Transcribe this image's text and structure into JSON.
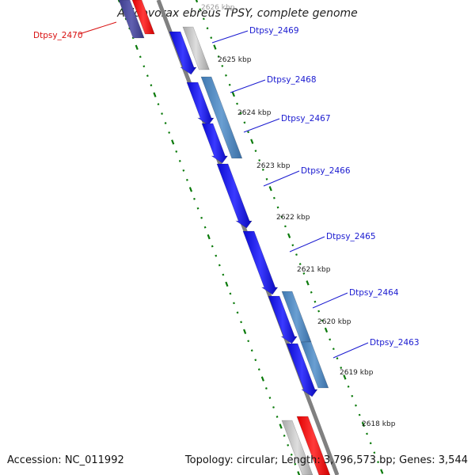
{
  "title": "Acidovorax ebreus TPSY, complete genome",
  "footer": {
    "accession": "Accession: NC_011992",
    "stats": "Topology: circular; Length: 3,796,573 bp; Genes: 3,544"
  },
  "colors": {
    "backbone": "#808080",
    "tick": "#0a7a0a",
    "gene_forward": "#1414f0",
    "gene_reverse": "#4a86c0",
    "gene_gray": "#bdbdbd",
    "gene_red": "#ff1010",
    "gene_navy": "#4a4a9e",
    "label_blue": "#1a1ad0",
    "label_red": "#d81010"
  },
  "ruler": [
    "2626 kbp",
    "2625 kbp",
    "2624 kbp",
    "2623 kbp",
    "2622 kbp",
    "2621 kbp",
    "2620 kbp",
    "2619 kbp",
    "2618 kbp"
  ],
  "gene_labels": [
    {
      "text": "Dtpsy_2470",
      "color": "red"
    },
    {
      "text": "Dtpsy_2469",
      "color": "blue"
    },
    {
      "text": "Dtpsy_2468",
      "color": "blue"
    },
    {
      "text": "Dtpsy_2467",
      "color": "blue"
    },
    {
      "text": "Dtpsy_2466",
      "color": "blue"
    },
    {
      "text": "Dtpsy_2465",
      "color": "blue"
    },
    {
      "text": "Dtpsy_2464",
      "color": "blue"
    },
    {
      "text": "Dtpsy_2463",
      "color": "blue"
    }
  ]
}
